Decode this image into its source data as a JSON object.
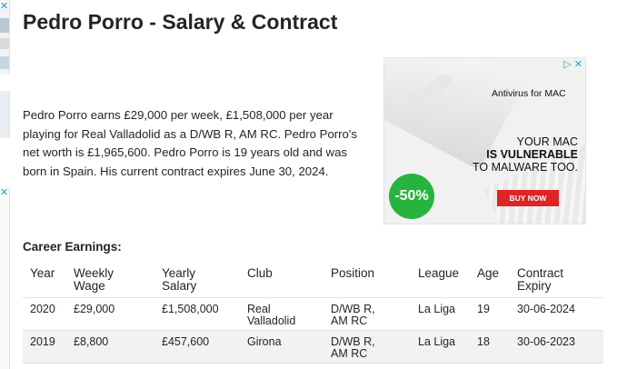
{
  "page": {
    "title": "Pedro Porro - Salary & Contract",
    "bio": "Pedro Porro earns £29,000 per week, £1,508,000 per year playing for Real Valladolid as a D/WB R, AM RC. Pedro Porro's net worth is £1,965,600. Pedro Porro is 19 years old and was born in Spain. His current contract expires June 30, 2024."
  },
  "ad": {
    "brand": "Antivirus for MAC",
    "line1": "YOUR MAC",
    "line2": "IS VULNERABLE",
    "line3": "TO MALWARE TOO.",
    "cta": "BUY NOW",
    "discount": "-50%",
    "adchoices": "▷ ✕",
    "colors": {
      "cta": "#e02424",
      "badge": "#27b43e"
    }
  },
  "earnings": {
    "heading": "Career Earnings:",
    "columns": [
      "Year",
      "Weekly Wage",
      "Yearly Salary",
      "Club",
      "Position",
      "League",
      "Age",
      "Contract Expiry"
    ],
    "rows": [
      [
        "2020",
        "£29,000",
        "£1,508,000",
        "Real Valladolid",
        "D/WB R, AM RC",
        "La Liga",
        "19",
        "30-06-2024"
      ],
      [
        "2019",
        "£8,800",
        "£457,600",
        "Girona",
        "D/WB R, AM RC",
        "La Liga",
        "18",
        "30-06-2023"
      ]
    ]
  },
  "left_ad": {
    "mark": "✕"
  }
}
